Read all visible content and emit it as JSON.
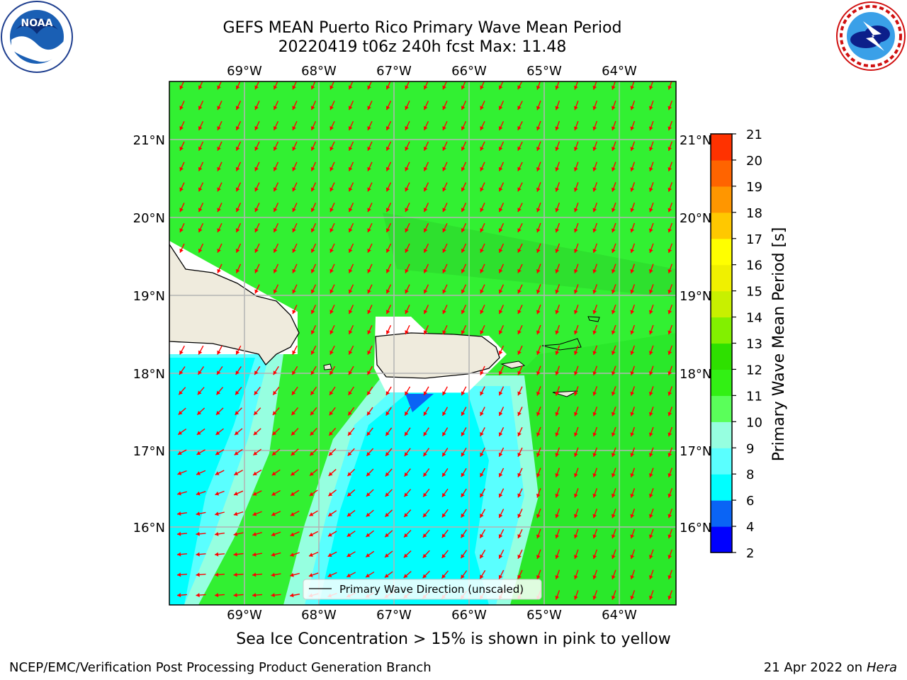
{
  "title_line1": "GEFS MEAN Puerto Rico Primary Wave Mean Period",
  "title_line2": "20220419 t06z 240h fcst   Max: 11.48",
  "lon_labels": [
    "69°W",
    "68°W",
    "67°W",
    "66°W",
    "65°W",
    "64°W"
  ],
  "lat_labels": [
    "21°N",
    "20°N",
    "19°N",
    "18°N",
    "17°N",
    "16°N"
  ],
  "legend_label": "Primary Wave Direction (unscaled)",
  "colorbar": {
    "label": "Primary Wave Mean Period [s]",
    "ticks": [
      "2",
      "4",
      "6",
      "8",
      "9",
      "10",
      "11",
      "12",
      "13",
      "14",
      "15",
      "16",
      "17",
      "18",
      "19",
      "20",
      "21"
    ],
    "colors": [
      "#0000ff",
      "#0a64f5",
      "#00ffff",
      "#5affff",
      "#96ffe0",
      "#5aff5a",
      "#32f014",
      "#2ee000",
      "#82f000",
      "#c8f000",
      "#f0f000",
      "#ffff00",
      "#ffc800",
      "#ff9600",
      "#ff6400",
      "#ff3200",
      "#ff0000"
    ]
  },
  "colors": {
    "land": "#efebdd",
    "arrow": "#ff0000",
    "grid": "#b4b4b4",
    "green": "#32f032"
  },
  "note": "Sea Ice Concentration > 15% is shown in pink to yellow",
  "footer_left": "NCEP/EMC/Verification Post Processing Product Generation Branch",
  "footer_right_date": "21 Apr 2022 on ",
  "footer_right_host": "Hera",
  "logos": {
    "left": "noaa-logo",
    "right": "nws-logo",
    "left_text": "NOAA"
  }
}
